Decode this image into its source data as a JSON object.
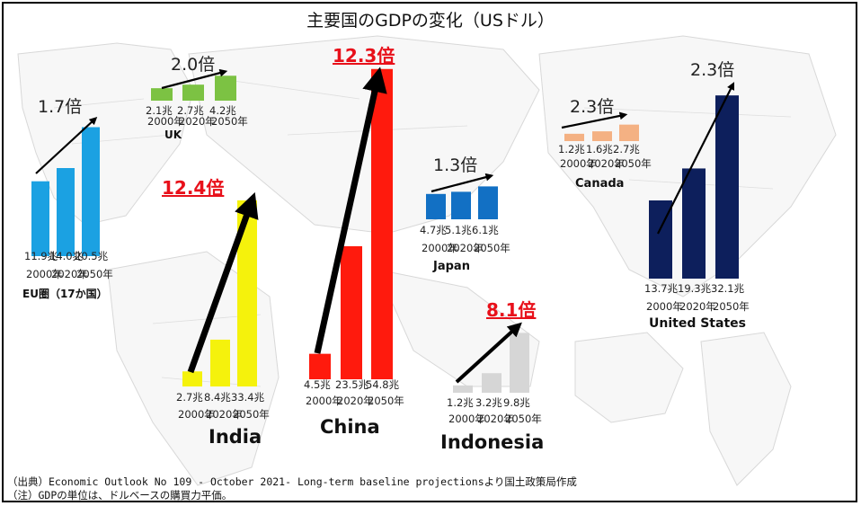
{
  "title": "主要国のGDPの変化（USドル）",
  "footnotes": {
    "source": "（出典）Economic Outlook No 109 - October 2021- Long-term baseline projectionsより国土政策局作成",
    "note": "（注）GDPの単位は、ドルベースの購買力平価。"
  },
  "chart_data": {
    "type": "bar",
    "categories": [
      "2000年",
      "2020年",
      "2050年"
    ],
    "unit": "兆",
    "series": [
      {
        "name": "EU圏（17か国）",
        "values": [
          11.9,
          14.0,
          20.5
        ],
        "value_labels": [
          "11.9兆",
          "14.0兆",
          "20.5兆"
        ],
        "ratio": "1.7倍",
        "color": "#1ba1e2",
        "ratio_highlight": false
      },
      {
        "name": "UK",
        "values": [
          2.1,
          2.7,
          4.2
        ],
        "value_labels": [
          "2.1兆",
          "2.7兆",
          "4.2兆"
        ],
        "ratio": "2.0倍",
        "color": "#7cc243",
        "ratio_highlight": false
      },
      {
        "name": "India",
        "values": [
          2.7,
          8.4,
          33.4
        ],
        "value_labels": [
          "2.7兆",
          "8.4兆",
          "33.4兆"
        ],
        "ratio": "12.4倍",
        "color": "#f5f20c",
        "ratio_highlight": true
      },
      {
        "name": "China",
        "values": [
          4.5,
          23.5,
          54.8
        ],
        "value_labels": [
          "4.5兆",
          "23.5兆",
          "54.8兆"
        ],
        "ratio": "12.3倍",
        "color": "#ff1a0d",
        "ratio_highlight": true
      },
      {
        "name": "Japan",
        "values": [
          4.7,
          5.1,
          6.1
        ],
        "value_labels": [
          "4.7兆",
          "5.1兆",
          "6.1兆"
        ],
        "ratio": "1.3倍",
        "color": "#1270c4",
        "ratio_highlight": false
      },
      {
        "name": "Indonesia",
        "values": [
          1.2,
          3.2,
          9.8
        ],
        "value_labels": [
          "1.2兆",
          "3.2兆",
          "9.8兆"
        ],
        "ratio": "8.1倍",
        "color": "#d6d6d6",
        "ratio_highlight": true
      },
      {
        "name": "Canada",
        "values": [
          1.2,
          1.6,
          2.7
        ],
        "value_labels": [
          "1.2兆",
          "1.6兆",
          "2.7兆"
        ],
        "ratio": "2.3倍",
        "color": "#f4b183",
        "ratio_highlight": false
      },
      {
        "name": "United States",
        "values": [
          13.7,
          19.3,
          32.1
        ],
        "value_labels": [
          "13.7兆",
          "19.3兆",
          "32.1兆"
        ],
        "ratio": "2.3倍",
        "color": "#0d1f5c",
        "ratio_highlight": false
      }
    ],
    "grid": false,
    "legend": "none"
  }
}
